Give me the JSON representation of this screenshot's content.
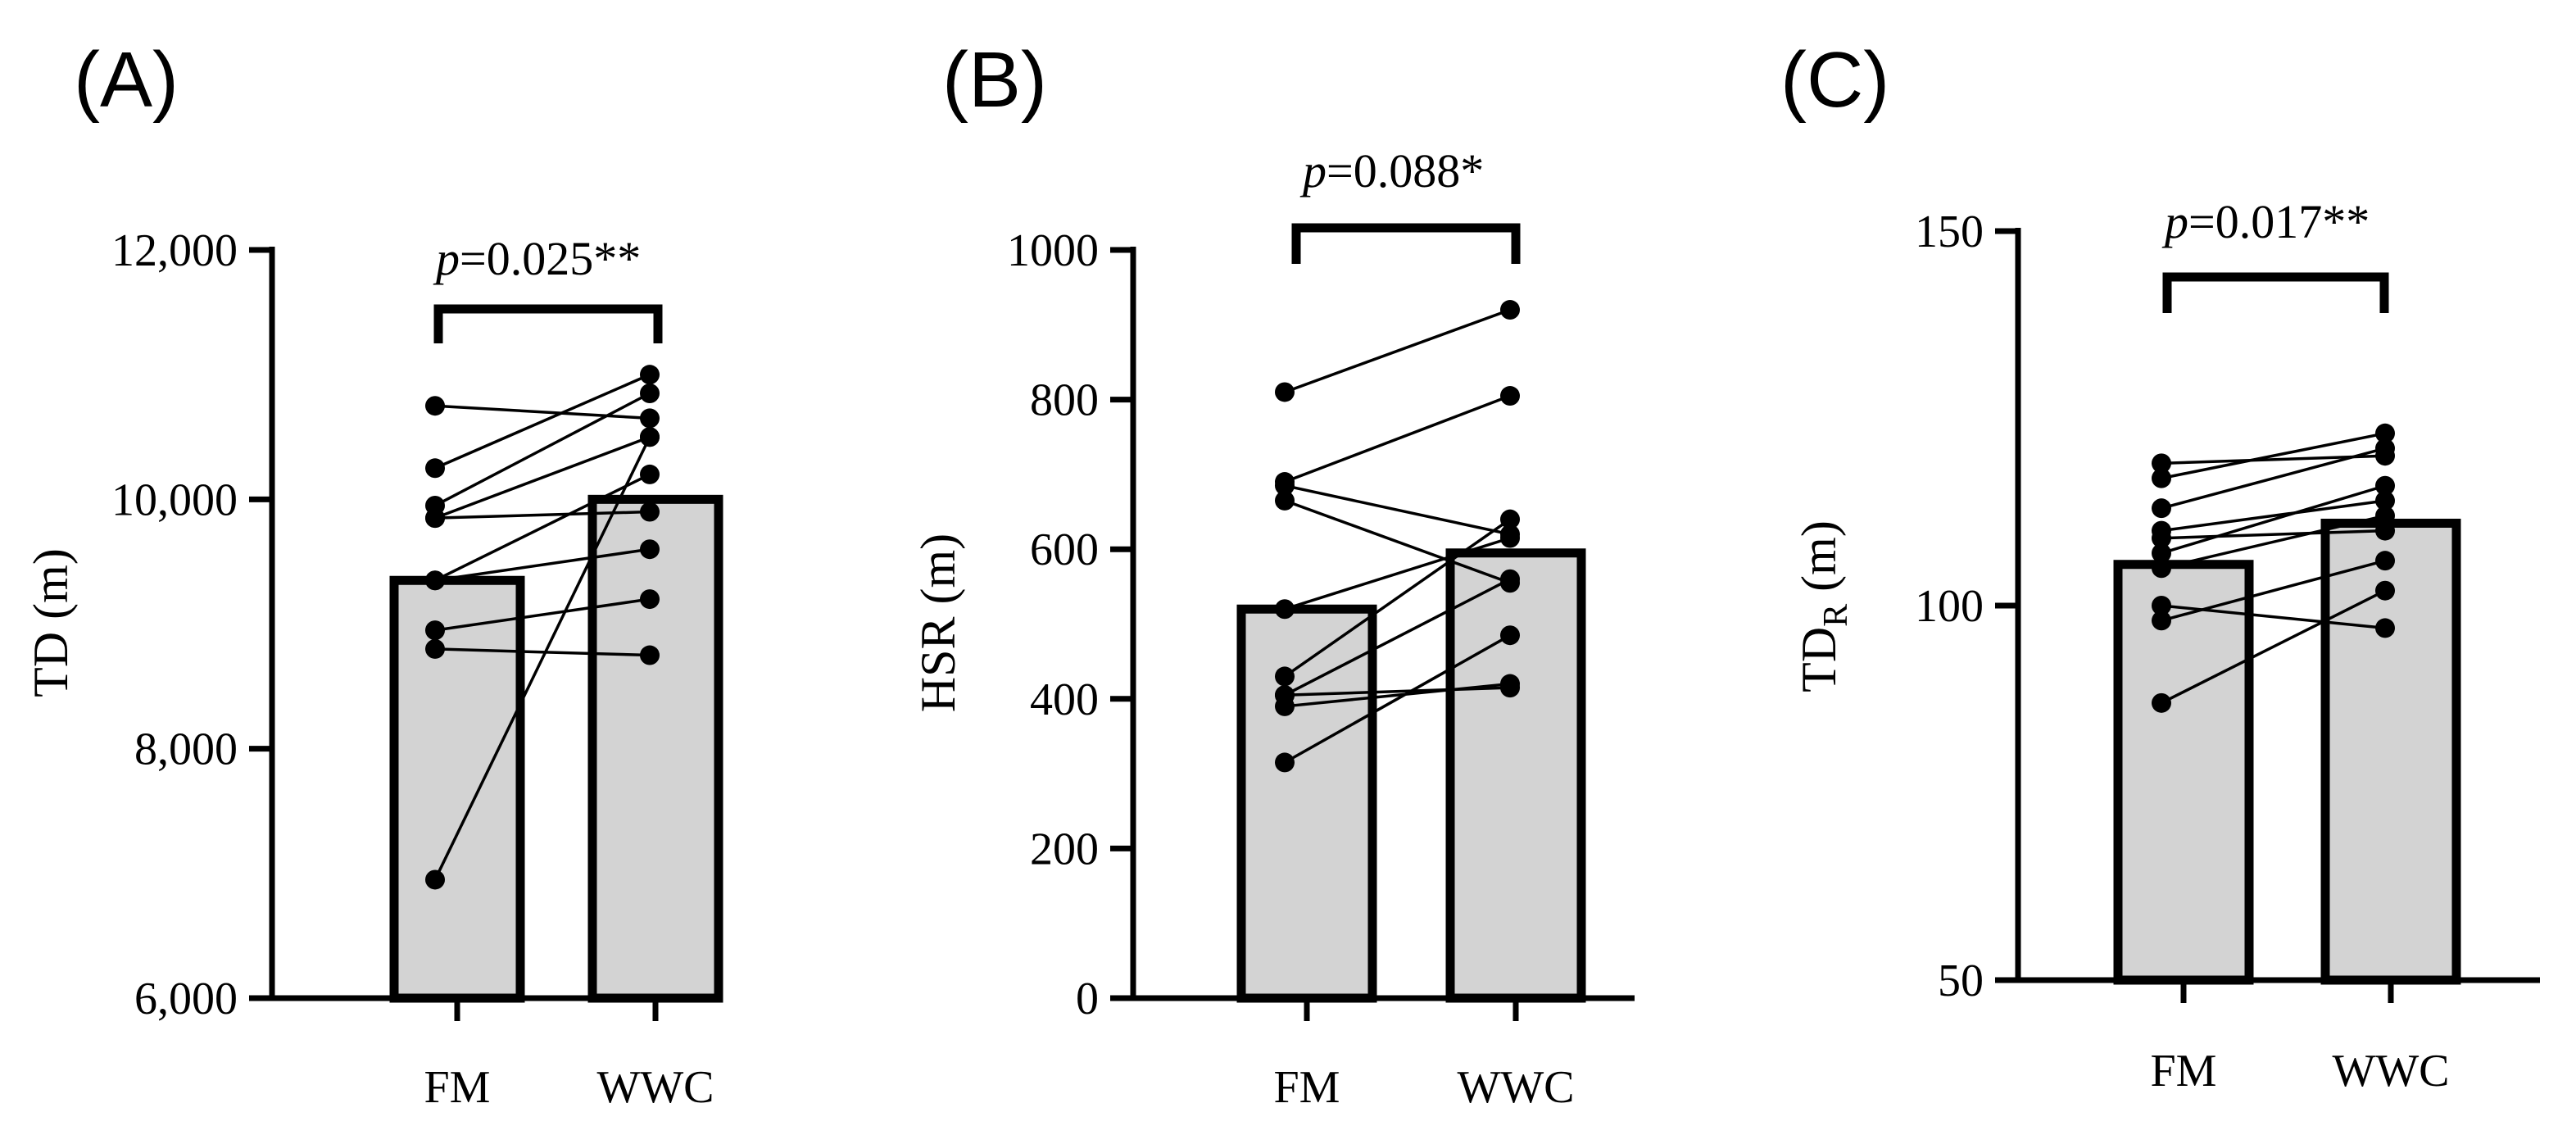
{
  "chart_data": [
    {
      "type": "bar",
      "panel_label": "(A)",
      "categories": [
        "FM",
        "WWC"
      ],
      "bar_values": [
        9350,
        10000
      ],
      "ylabel": "TD (m)",
      "ylabel_main": "TD",
      "ylabel_sub": "",
      "ylabel_unit": " (m)",
      "ylim": [
        6000,
        12000
      ],
      "yticks": [
        6000,
        8000,
        10000,
        12000
      ],
      "ytick_labels": [
        "6,000",
        "8,000",
        "10,000",
        "12,000"
      ],
      "pairs": [
        [
          10750,
          10650
        ],
        [
          10250,
          11000
        ],
        [
          9950,
          10850
        ],
        [
          9850,
          10500
        ],
        [
          9850,
          9900
        ],
        [
          9350,
          9600
        ],
        [
          9350,
          10200
        ],
        [
          8950,
          9200
        ],
        [
          8800,
          8750
        ],
        [
          6950,
          10500
        ]
      ],
      "significance": {
        "p_symbol": "p",
        "p_text": "=0.025**"
      }
    },
    {
      "type": "bar",
      "panel_label": "(B)",
      "categories": [
        "FM",
        "WWC"
      ],
      "bar_values": [
        520,
        595
      ],
      "ylabel": "HSR (m)",
      "ylabel_main": "HSR",
      "ylabel_sub": "",
      "ylabel_unit": " (m)",
      "ylim": [
        0,
        1000
      ],
      "yticks": [
        0,
        200,
        400,
        600,
        800,
        1000
      ],
      "ytick_labels": [
        "0",
        "200",
        "400",
        "600",
        "800",
        "1000"
      ],
      "pairs": [
        [
          810,
          920
        ],
        [
          690,
          805
        ],
        [
          685,
          620
        ],
        [
          665,
          555
        ],
        [
          520,
          615
        ],
        [
          430,
          640
        ],
        [
          405,
          415
        ],
        [
          405,
          560
        ],
        [
          390,
          420
        ],
        [
          315,
          485
        ]
      ],
      "significance": {
        "p_symbol": "p",
        "p_text": "=0.088*"
      }
    },
    {
      "type": "bar",
      "panel_label": "(C)",
      "categories": [
        "FM",
        "WWC"
      ],
      "bar_values": [
        105.5,
        111
      ],
      "ylabel": "TDR (m)",
      "ylabel_main": "TD",
      "ylabel_sub": "R",
      "ylabel_unit": " (m)",
      "ylim": [
        50,
        150
      ],
      "yticks": [
        50,
        100,
        150
      ],
      "ytick_labels": [
        "50",
        "100",
        "150"
      ],
      "pairs": [
        [
          119,
          120
        ],
        [
          117,
          123
        ],
        [
          113,
          121
        ],
        [
          110,
          114
        ],
        [
          109,
          110
        ],
        [
          107,
          116
        ],
        [
          105,
          112
        ],
        [
          100,
          97
        ],
        [
          98,
          106
        ],
        [
          87,
          102
        ]
      ],
      "significance": {
        "p_symbol": "p",
        "p_text": "=0.017**"
      }
    }
  ]
}
